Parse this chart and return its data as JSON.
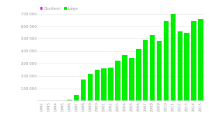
{
  "years": [
    1992,
    1993,
    1994,
    1995,
    1996,
    1997,
    1998,
    1999,
    2000,
    2001,
    2002,
    2003,
    2004,
    2005,
    2006,
    2007,
    2008,
    2009,
    2010,
    2011,
    2012,
    2013,
    2014,
    2015
  ],
  "liege": [
    0,
    0,
    0,
    0,
    5000,
    45000,
    170000,
    215000,
    250000,
    260000,
    265000,
    320000,
    365000,
    345000,
    415000,
    490000,
    530000,
    480000,
    640000,
    700000,
    560000,
    545000,
    640000,
    660000
  ],
  "charleroi": [
    0,
    0,
    0,
    0,
    0,
    0,
    0,
    0,
    0,
    0,
    0,
    0,
    0,
    0,
    0,
    0,
    0,
    0,
    0,
    0,
    0,
    0,
    0,
    0
  ],
  "liege_color": "#00ee00",
  "charleroi_color": "#ff00ff",
  "ylim": [
    0,
    780000
  ],
  "yticks": [
    0,
    100000,
    200000,
    300000,
    400000,
    500000,
    600000,
    700000
  ],
  "background_color": "#ffffff",
  "grid_color": "#dddddd",
  "bar_width": 0.75
}
